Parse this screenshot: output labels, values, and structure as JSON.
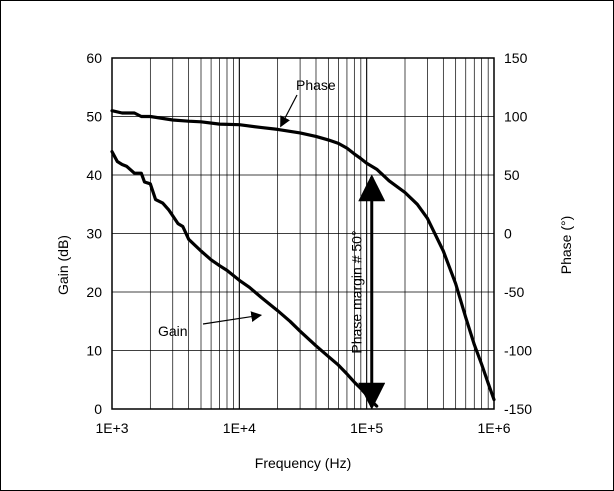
{
  "chart_data": {
    "type": "line",
    "xlabel": "Frequency (Hz)",
    "ylabel_left": "Gain (dB)",
    "ylabel_right": "Phase (°)",
    "x_scale": "log",
    "xlim": [
      1000,
      1000000
    ],
    "ylim_left": [
      0,
      60
    ],
    "ylim_right": [
      -150,
      150
    ],
    "x_ticks": [
      1000,
      10000,
      100000,
      1000000
    ],
    "x_tick_labels": [
      "1E+3",
      "1E+4",
      "1E+5",
      "1E+6"
    ],
    "y_left_ticks": [
      0,
      10,
      20,
      30,
      40,
      50,
      60
    ],
    "y_left_tick_labels": [
      "0",
      "10",
      "20",
      "30",
      "40",
      "50",
      "60"
    ],
    "y_right_ticks": [
      -150,
      -100,
      -50,
      0,
      50,
      100,
      150
    ],
    "y_right_tick_labels": [
      "-150",
      "-100",
      "-50",
      "0",
      "50",
      "100",
      "150"
    ],
    "grid": true,
    "series": [
      {
        "name": "Gain",
        "axis": "left",
        "x": [
          1000,
          1100,
          1200,
          1300,
          1500,
          1700,
          1800,
          2000,
          2200,
          2500,
          2800,
          3000,
          3300,
          3600,
          4000,
          5000,
          6000,
          7000,
          8000,
          10000,
          12000,
          15000,
          20000,
          25000,
          30000,
          40000,
          50000,
          60000,
          70000,
          80000,
          90000,
          100000,
          110000,
          120000
        ],
        "values": [
          44,
          42.3,
          41.8,
          41.5,
          40.3,
          40.3,
          38.8,
          38.5,
          35.8,
          35.2,
          34,
          33,
          31.7,
          31.2,
          29,
          27,
          25.5,
          24.5,
          23.7,
          22,
          20.8,
          19,
          16.8,
          15,
          13.3,
          10.8,
          9,
          7.5,
          6,
          4.6,
          3.5,
          2.4,
          1.3,
          0.5
        ]
      },
      {
        "name": "Phase",
        "axis": "right",
        "x": [
          1000,
          1200,
          1500,
          1700,
          2000,
          3000,
          4000,
          5000,
          7000,
          10000,
          15000,
          20000,
          30000,
          40000,
          50000,
          60000,
          70000,
          80000,
          90000,
          100000,
          120000,
          150000,
          200000,
          250000,
          300000,
          400000,
          500000,
          600000,
          700000,
          800000,
          900000,
          1000000
        ],
        "values": [
          105,
          103,
          103,
          100,
          100,
          97,
          96,
          95.5,
          93.5,
          93,
          90.5,
          89,
          86,
          83,
          80,
          77,
          73,
          68,
          64,
          60,
          55,
          45,
          35,
          25,
          13,
          -15,
          -43,
          -72,
          -95,
          -112,
          -128,
          -142
        ]
      }
    ],
    "annotations": [
      {
        "text": "Phase",
        "points_to_series": "Phase",
        "at_x": 20000
      },
      {
        "text": "Gain",
        "points_to_series": "Gain",
        "at_x": 40000
      },
      {
        "text": "Phase margin # 50°",
        "at_x": 120000,
        "from_phase": 50,
        "to_phase": -150
      }
    ]
  }
}
